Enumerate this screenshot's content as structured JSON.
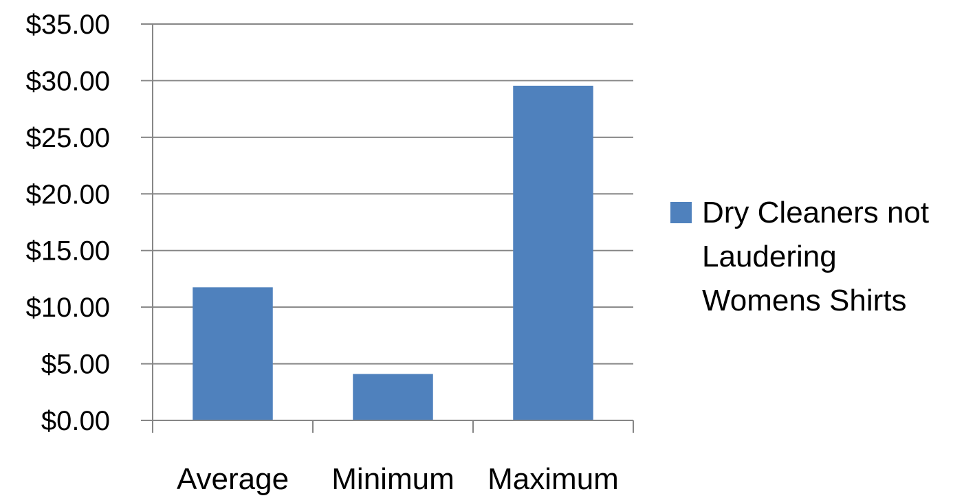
{
  "chart_data": {
    "type": "bar",
    "categories": [
      "Average",
      "Minimum",
      "Maximum"
    ],
    "series": [
      {
        "name": "Dry Cleaners not Laudering Womens Shirts",
        "values": [
          11.75,
          4.1,
          29.55
        ]
      }
    ],
    "yticks": [
      "$0.00",
      "$5.00",
      "$10.00",
      "$15.00",
      "$20.00",
      "$25.00",
      "$30.00",
      "$35.00"
    ],
    "ylim": [
      0,
      35
    ],
    "ytick_step": 5,
    "grid": true,
    "legend_position": "right",
    "bar_color": "#4f81bd",
    "grid_color": "#868686"
  }
}
